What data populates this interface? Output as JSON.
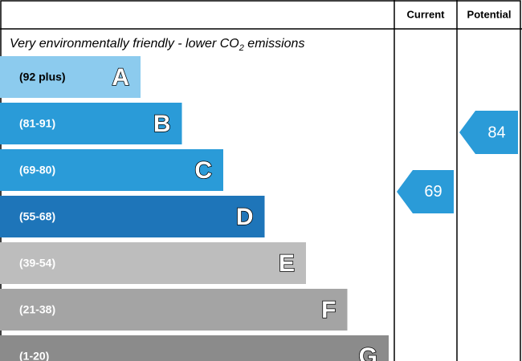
{
  "chart_data": {
    "type": "energy-rating",
    "headers": [
      "Current",
      "Potential"
    ],
    "caption": [
      "Very environmentally friendly - lower CO",
      "2",
      " emissions"
    ],
    "bands": [
      {
        "range": "(92 plus)",
        "letter": "A",
        "color": "#8ccbee"
      },
      {
        "range": "(81-91)",
        "letter": "B",
        "color": "#2a9bd8"
      },
      {
        "range": "(69-80)",
        "letter": "C",
        "color": "#2a9bd8"
      },
      {
        "range": "(55-68)",
        "letter": "D",
        "color": "#1e75b9"
      },
      {
        "range": "(39-54)",
        "letter": "E",
        "color": "#bdbdbd"
      },
      {
        "range": "(21-38)",
        "letter": "F",
        "color": "#a4a4a4"
      },
      {
        "range": "(1-20)",
        "letter": "G",
        "color": "#8b8b8b"
      }
    ],
    "current": {
      "value": 69,
      "color": "#2a9bd8"
    },
    "potential": {
      "value": 84,
      "color": "#2a9bd8"
    }
  }
}
